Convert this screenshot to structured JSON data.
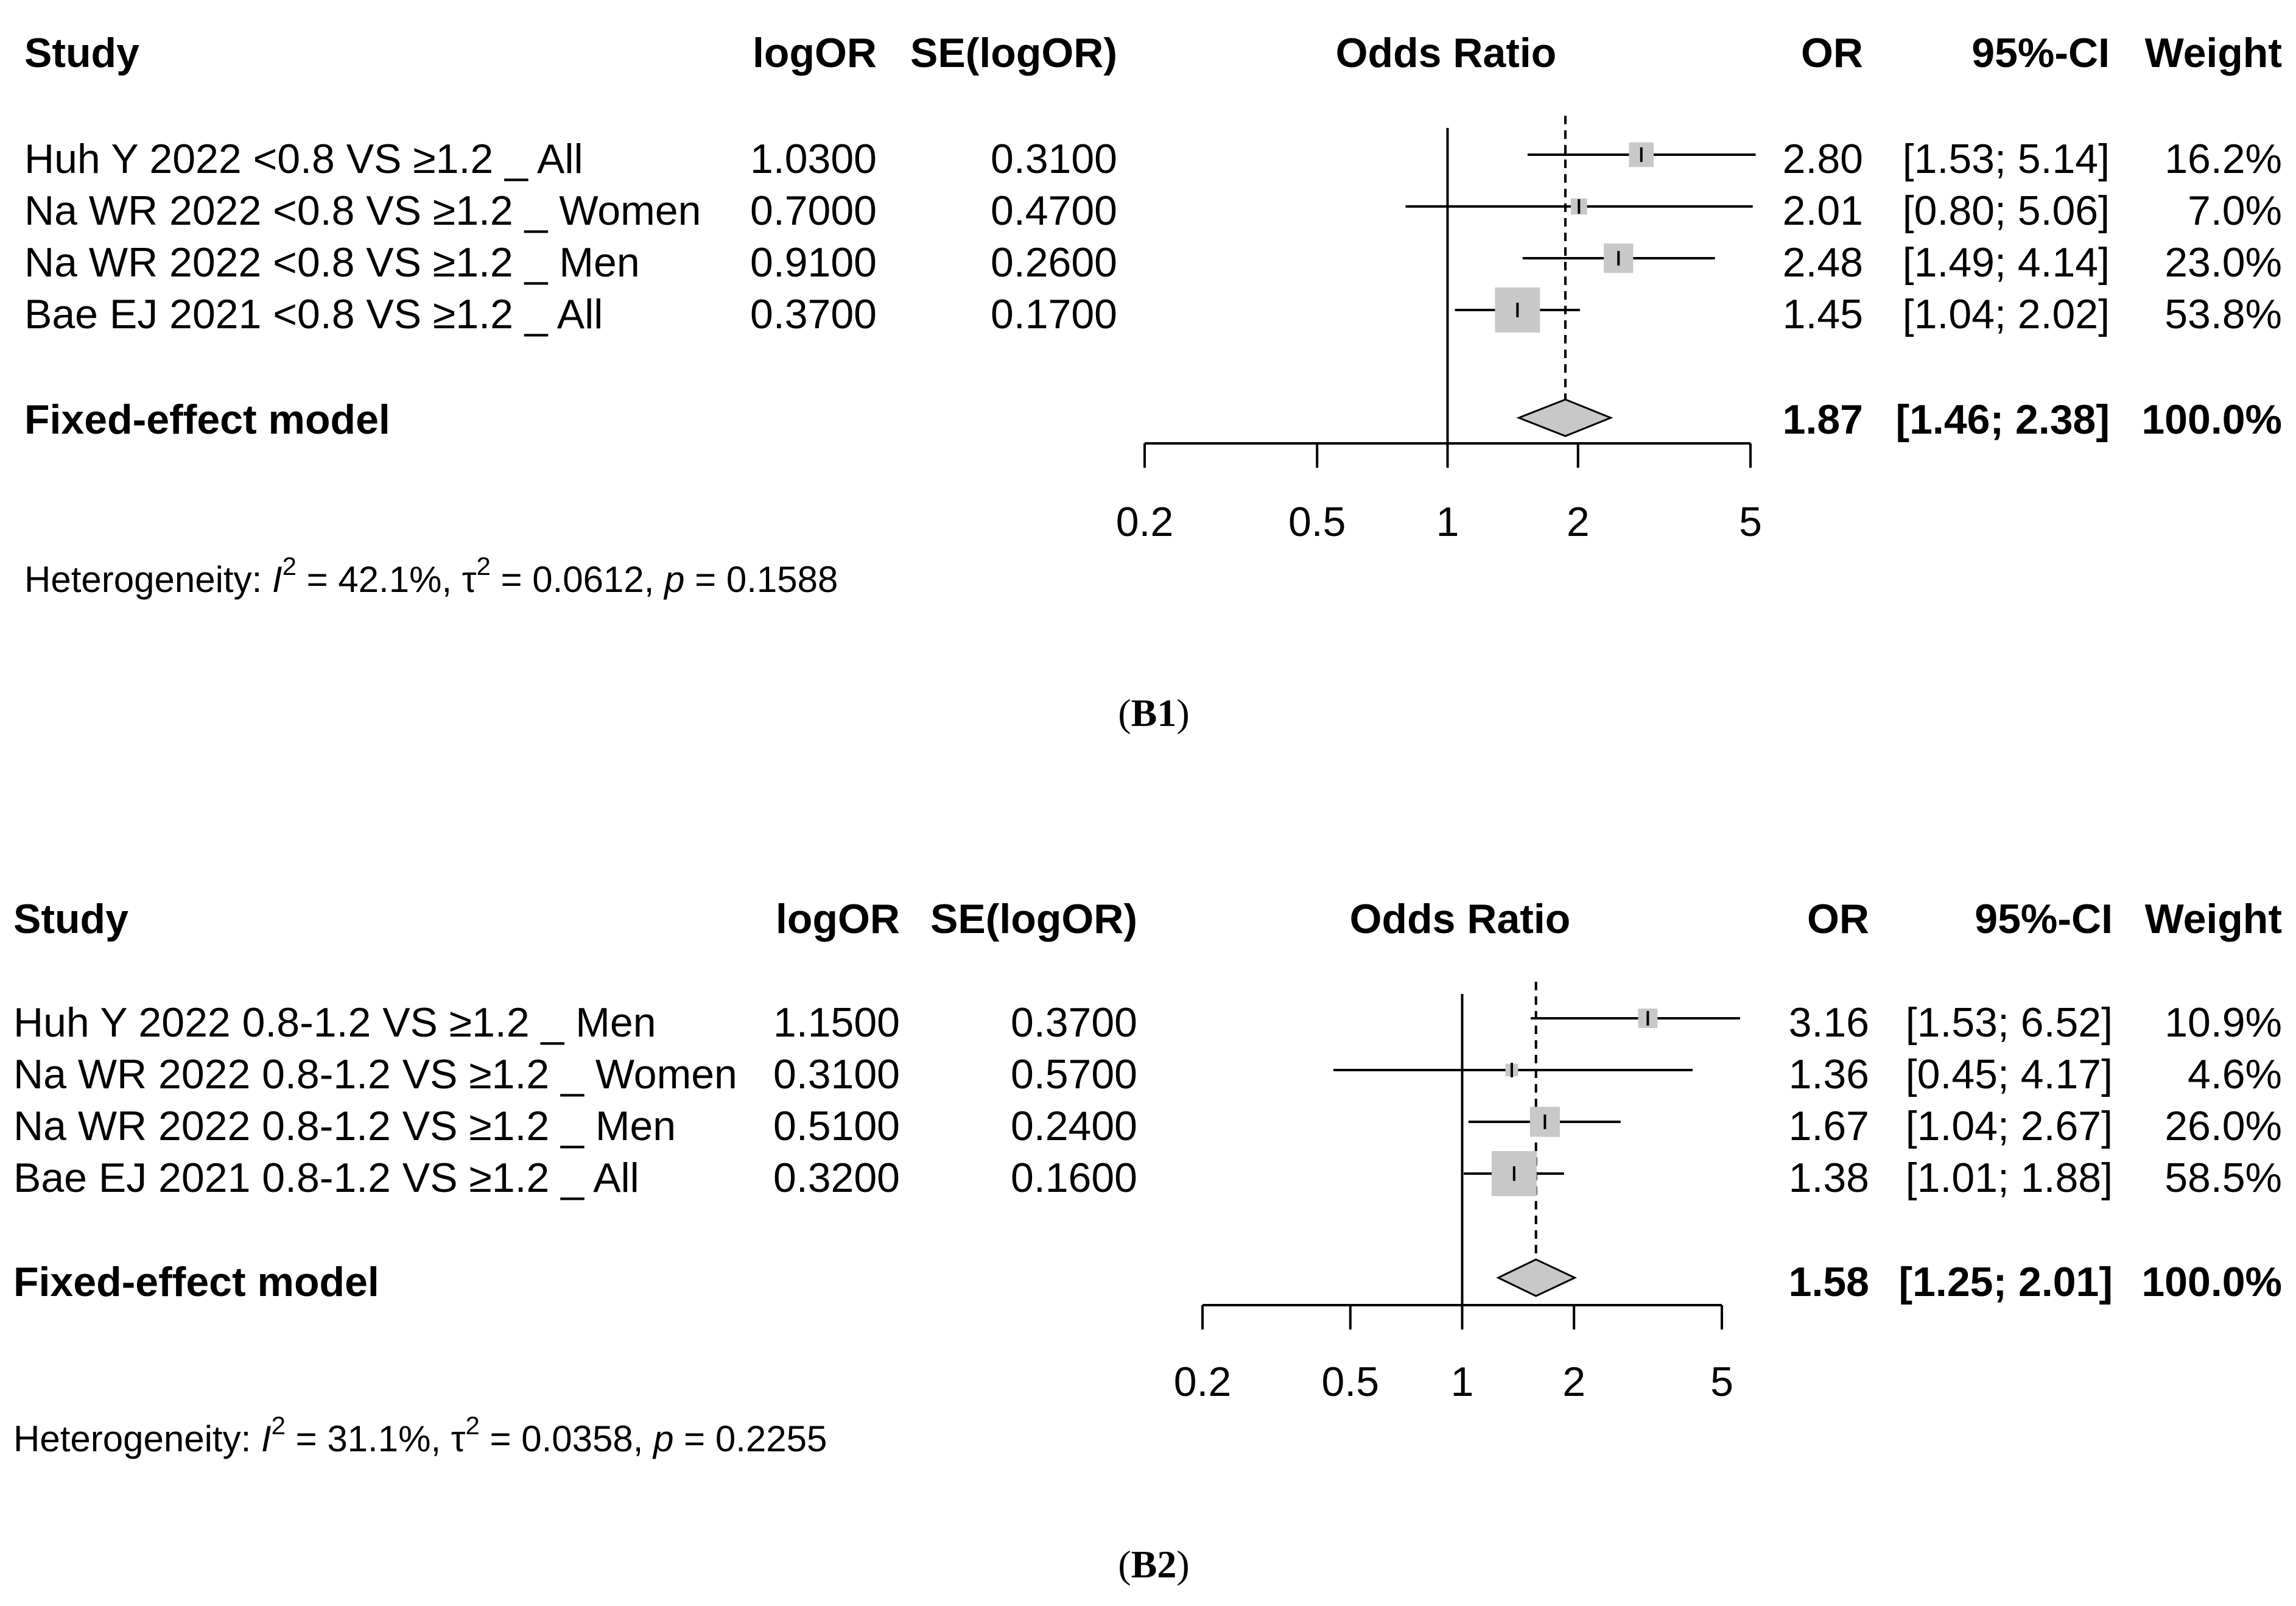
{
  "chart_data": [
    {
      "type": "forest",
      "caption_prefix": "(",
      "caption_id": "B1",
      "caption_suffix": ")",
      "headers": {
        "study": "Study",
        "logor": "logOR",
        "se": "SE(logOR)",
        "plot": "Odds Ratio",
        "or": "OR",
        "ci": "95%-CI",
        "weight": "Weight"
      },
      "scale": "log",
      "xlim": [
        0.2,
        5
      ],
      "ticks": [
        0.2,
        0.5,
        1,
        2,
        5
      ],
      "tick_labels": [
        "0.2",
        "0.5",
        "1",
        "2",
        "5"
      ],
      "reference_line": 1,
      "pooled_line": 1.87,
      "studies": [
        {
          "study": "Huh Y 2022 <0.8 VS ≥1.2  _ All",
          "logor": "1.0300",
          "se": "0.3100",
          "or": 2.8,
          "lower": 1.53,
          "upper": 5.14,
          "or_text": "2.80",
          "ci_text": "[1.53; 5.14]",
          "weight": 16.2,
          "weight_text": "16.2%"
        },
        {
          "study": "Na WR 2022 <0.8 VS ≥1.2 _ Women",
          "logor": "0.7000",
          "se": "0.4700",
          "or": 2.01,
          "lower": 0.8,
          "upper": 5.06,
          "or_text": "2.01",
          "ci_text": "[0.80; 5.06]",
          "weight": 7.0,
          "weight_text": "7.0%"
        },
        {
          "study": "Na WR 2022 <0.8 VS ≥1.2 _ Men",
          "logor": "0.9100",
          "se": "0.2600",
          "or": 2.48,
          "lower": 1.49,
          "upper": 4.14,
          "or_text": "2.48",
          "ci_text": "[1.49; 4.14]",
          "weight": 23.0,
          "weight_text": "23.0%"
        },
        {
          "study": "Bae EJ 2021 <0.8 VS ≥1.2  _ All",
          "logor": "0.3700",
          "se": "0.1700",
          "or": 1.45,
          "lower": 1.04,
          "upper": 2.02,
          "or_text": "1.45",
          "ci_text": "[1.04; 2.02]",
          "weight": 53.8,
          "weight_text": "53.8%"
        }
      ],
      "summary": {
        "label": "Fixed-effect model",
        "or": 1.87,
        "lower": 1.46,
        "upper": 2.38,
        "or_text": "1.87",
        "ci_text": "[1.46; 2.38]",
        "weight_text": "100.0%"
      },
      "heterogeneity": {
        "prefix": "Heterogeneity: ",
        "i2_symbol": "I",
        "sup": "2",
        "i2_value": " = 42.1%, ",
        "tau_symbol": "τ",
        "tau_value": " = 0.0612, ",
        "p_symbol": "p",
        "p_value": " = 0.1588"
      }
    },
    {
      "type": "forest",
      "caption_prefix": "(",
      "caption_id": "B2",
      "caption_suffix": ")",
      "headers": {
        "study": "Study",
        "logor": "logOR",
        "se": "SE(logOR)",
        "plot": "Odds Ratio",
        "or": "OR",
        "ci": "95%-CI",
        "weight": "Weight"
      },
      "scale": "log",
      "xlim": [
        0.2,
        5
      ],
      "ticks": [
        0.2,
        0.5,
        1,
        2,
        5
      ],
      "tick_labels": [
        "0.2",
        "0.5",
        "1",
        "2",
        "5"
      ],
      "reference_line": 1,
      "pooled_line": 1.58,
      "studies": [
        {
          "study": "Huh Y 2022 0.8-1.2 VS ≥1.2 _ Men",
          "logor": "1.1500",
          "se": "0.3700",
          "or": 3.16,
          "lower": 1.53,
          "upper": 6.52,
          "or_text": "3.16",
          "ci_text": "[1.53; 6.52]",
          "weight": 10.9,
          "weight_text": "10.9%"
        },
        {
          "study": "Na WR 2022 0.8-1.2 VS ≥1.2 _ Women",
          "logor": "0.3100",
          "se": "0.5700",
          "or": 1.36,
          "lower": 0.45,
          "upper": 4.17,
          "or_text": "1.36",
          "ci_text": "[0.45; 4.17]",
          "weight": 4.6,
          "weight_text": "4.6%"
        },
        {
          "study": "Na WR 2022 0.8-1.2 VS ≥1.2 _ Men",
          "logor": "0.5100",
          "se": "0.2400",
          "or": 1.67,
          "lower": 1.04,
          "upper": 2.67,
          "or_text": "1.67",
          "ci_text": "[1.04; 2.67]",
          "weight": 26.0,
          "weight_text": "26.0%"
        },
        {
          "study": "Bae EJ 2021 0.8-1.2 VS ≥1.2  _ All",
          "logor": "0.3200",
          "se": "0.1600",
          "or": 1.38,
          "lower": 1.01,
          "upper": 1.88,
          "or_text": "1.38",
          "ci_text": "[1.01; 1.88]",
          "weight": 58.5,
          "weight_text": "58.5%"
        }
      ],
      "summary": {
        "label": "Fixed-effect model",
        "or": 1.58,
        "lower": 1.25,
        "upper": 2.01,
        "or_text": "1.58",
        "ci_text": "[1.25; 2.01]",
        "weight_text": "100.0%"
      },
      "heterogeneity": {
        "prefix": "Heterogeneity: ",
        "i2_symbol": "I",
        "sup": "2",
        "i2_value": " = 31.1%, ",
        "tau_symbol": "τ",
        "tau_value": " = 0.0358, ",
        "p_symbol": "p",
        "p_value": " = 0.2255"
      }
    }
  ]
}
